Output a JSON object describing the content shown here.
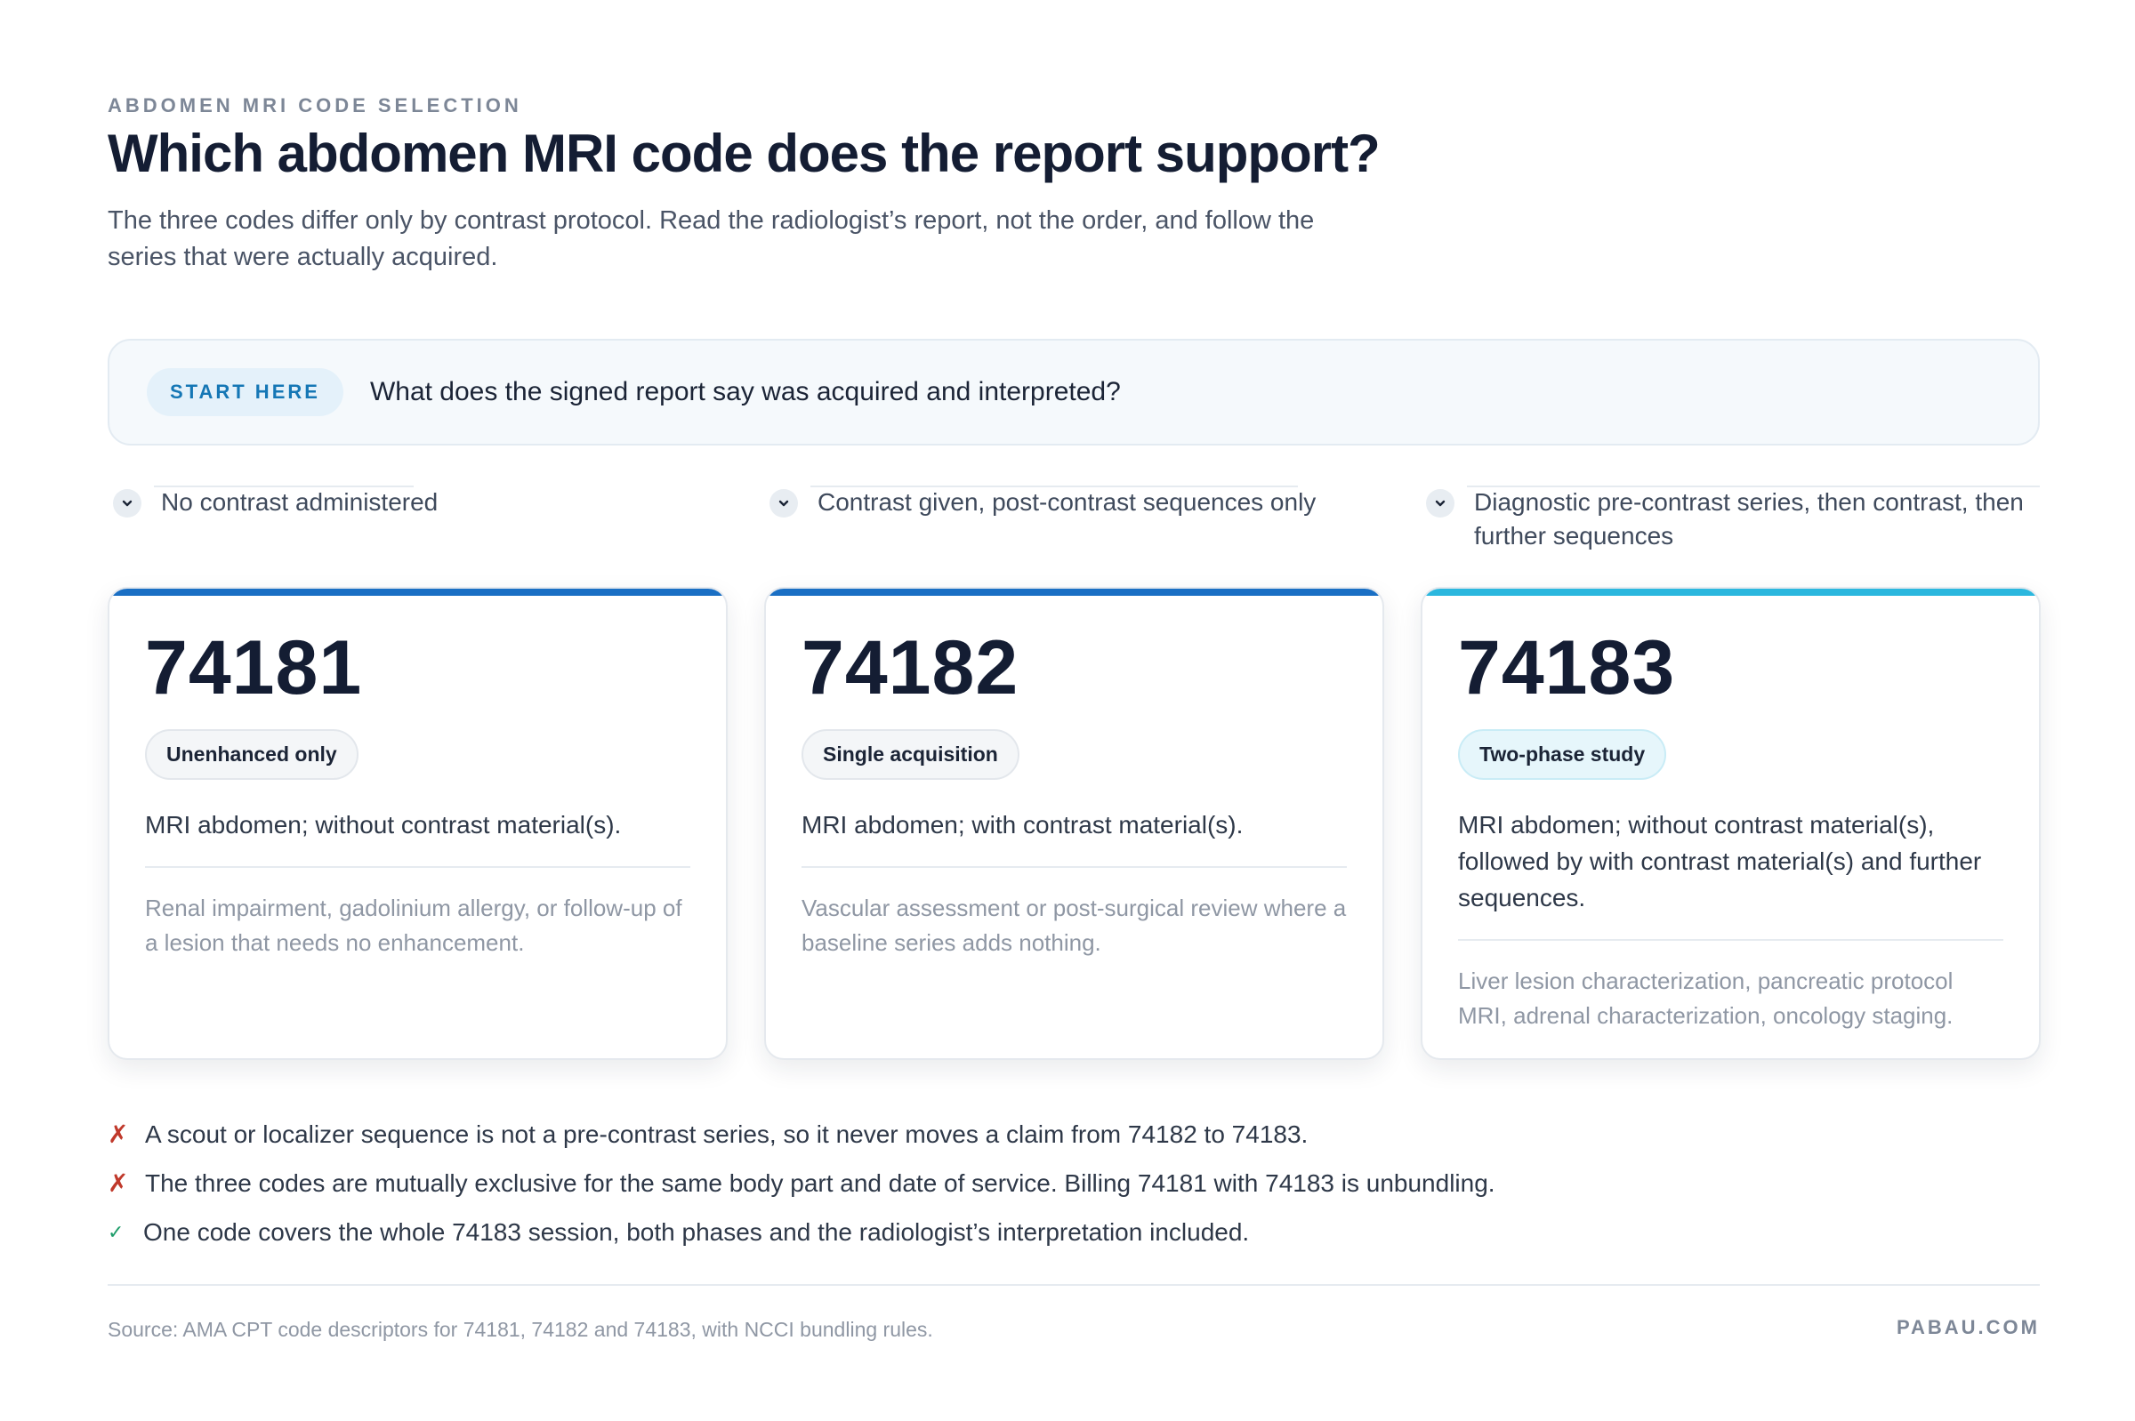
{
  "header": {
    "eyebrow": "ABDOMEN MRI CODE SELECTION",
    "title": "Which abdomen MRI code does the report support?",
    "subtitle": "The three codes differ only by contrast protocol. Read the radiologist’s report, not the order, and follow the series that were actually acquired."
  },
  "start": {
    "pill": "START HERE",
    "question": "What does the signed report say was acquired and interpreted?"
  },
  "branches": [
    {
      "label": "No contrast administered"
    },
    {
      "label": "Contrast given, post-contrast sequences only"
    },
    {
      "label": "Diagnostic pre-contrast series, then contrast, then further sequences"
    }
  ],
  "cards": [
    {
      "code": "74181",
      "badge": "Unenhanced only",
      "description": "MRI abdomen; without contrast material(s).",
      "use": "Renal impairment, gadolinium allergy, or follow-up of a lesion that needs no enhancement.",
      "accent": "#1a6fc4"
    },
    {
      "code": "74182",
      "badge": "Single acquisition",
      "description": "MRI abdomen; with contrast material(s).",
      "use": "Vascular assessment or post-surgical review where a baseline series adds nothing.",
      "accent": "#1a6fc4"
    },
    {
      "code": "74183",
      "badge": "Two-phase study",
      "description": "MRI abdomen; without contrast material(s), followed by with contrast material(s) and further sequences.",
      "use": "Liver lesion characterization, pancreatic protocol MRI, adrenal characterization, oncology staging.",
      "accent": "#2bb7de"
    }
  ],
  "notes": [
    {
      "type": "cross",
      "text": "A scout or localizer sequence is not a pre-contrast series, so it never moves a claim from 74182 to 74183."
    },
    {
      "type": "cross",
      "text": "The three codes are mutually exclusive for the same body part and date of service. Billing 74181 with 74183 is unbundling."
    },
    {
      "type": "check",
      "text": "One code covers the whole 74183 session, both phases and the radiologist’s interpretation included."
    }
  ],
  "footer": {
    "source": "Source: AMA CPT code descriptors for 74181, 74182 and 74183, with NCCI bundling rules.",
    "brand": "PABAU.COM"
  },
  "colors": {
    "accent_blue": "#1a6fc4",
    "accent_teal": "#2bb7de",
    "cross": "#c0392b",
    "check": "#1f9d6a"
  }
}
